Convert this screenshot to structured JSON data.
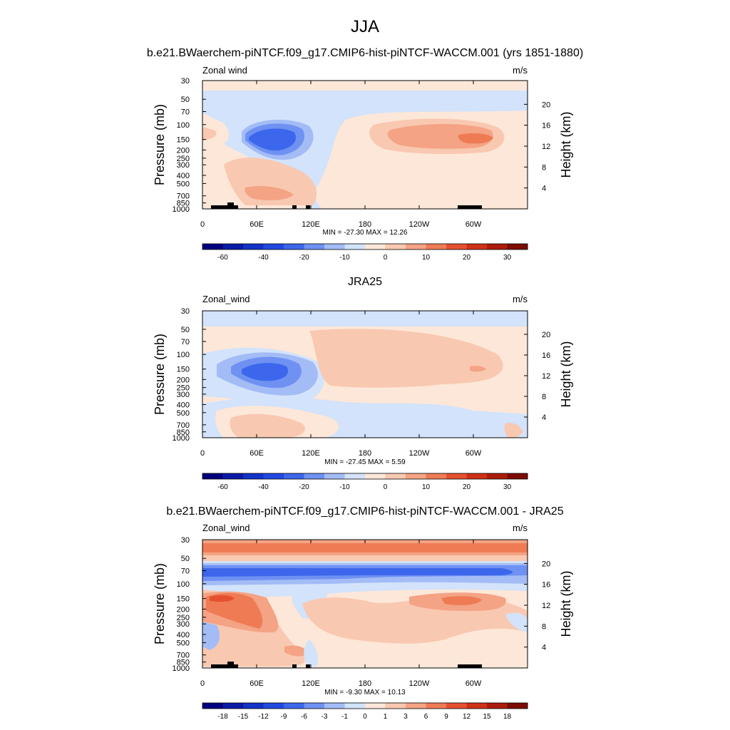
{
  "page_title": "JJA",
  "chart_data": [
    {
      "type": "heatmap",
      "title": "b.e21.BWaerchem-piNTCF.f09_g17.CMIP6-hist-piNTCF-WACCM.001 (yrs 1851-1880)",
      "left_label": "Zonal wind",
      "right_label": "m/s",
      "xlabel": "",
      "ylabel": "Pressure (mb)",
      "ylabel_right": "Height (km)",
      "xticks": [
        "0",
        "60E",
        "120E",
        "180",
        "120W",
        "60W"
      ],
      "xtick_values": [
        0,
        60,
        120,
        180,
        240,
        300
      ],
      "xlim": [
        0,
        360
      ],
      "yticks": [
        "30",
        "50",
        "70",
        "100",
        "150",
        "200",
        "250",
        "300",
        "400",
        "500",
        "700",
        "850",
        "1000"
      ],
      "ytick_values": [
        30,
        50,
        70,
        100,
        150,
        200,
        250,
        300,
        400,
        500,
        700,
        850,
        1000
      ],
      "ylim": [
        1000,
        30
      ],
      "yticks_right": [
        "20",
        "16",
        "12",
        "8",
        "4"
      ],
      "ytick_right_values": [
        20,
        16,
        12,
        8,
        4
      ],
      "stats": "MIN = -27.30  MAX =  12.26",
      "min": -27.3,
      "max": 12.26,
      "colorbar_labels": [
        "-60",
        "-40",
        "-20",
        "-10",
        "0",
        "10",
        "20",
        "30"
      ],
      "colorbar_levels": [
        -70,
        -60,
        -50,
        -40,
        -30,
        -20,
        -15,
        -10,
        -5,
        0,
        5,
        10,
        15,
        20,
        25,
        30,
        35
      ],
      "contour_regions": [
        {
          "level": "-5",
          "desc": "upper stratosphere band 30-110 mb"
        },
        {
          "level": "-15",
          "desc": "jet core near 60E-90E at 150 mb"
        },
        {
          "level": "-25",
          "desc": "jet center near 70E at 150 mb"
        },
        {
          "level": "5",
          "desc": "easterlies 170E-310E at 150 mb"
        },
        {
          "level": "10",
          "desc": "maximum near 290E at 150 mb"
        }
      ]
    },
    {
      "type": "heatmap",
      "title": "JRA25",
      "left_label": "Zonal_wind",
      "right_label": "m/s",
      "xlabel": "",
      "ylabel": "Pressure (mb)",
      "ylabel_right": "Height (km)",
      "xticks": [
        "0",
        "60E",
        "120E",
        "180",
        "120W",
        "60W"
      ],
      "xtick_values": [
        0,
        60,
        120,
        180,
        240,
        300
      ],
      "xlim": [
        0,
        360
      ],
      "yticks": [
        "30",
        "50",
        "70",
        "100",
        "150",
        "200",
        "250",
        "300",
        "400",
        "500",
        "700",
        "850",
        "1000"
      ],
      "ytick_values": [
        30,
        50,
        70,
        100,
        150,
        200,
        250,
        300,
        400,
        500,
        700,
        850,
        1000
      ],
      "ylim": [
        1000,
        30
      ],
      "yticks_right": [
        "20",
        "16",
        "12",
        "8",
        "4"
      ],
      "ytick_right_values": [
        20,
        16,
        12,
        8,
        4
      ],
      "stats": "MIN = -27.45  MAX =   5.59",
      "min": -27.45,
      "max": 5.59,
      "colorbar_labels": [
        "-60",
        "-40",
        "-20",
        "-10",
        "0",
        "10",
        "20",
        "30"
      ],
      "colorbar_levels": [
        -70,
        -60,
        -50,
        -40,
        -30,
        -20,
        -15,
        -10,
        -5,
        0,
        5,
        10,
        15,
        20,
        25,
        30,
        35
      ]
    },
    {
      "type": "heatmap",
      "title": "b.e21.BWaerchem-piNTCF.f09_g17.CMIP6-hist-piNTCF-WACCM.001 - JRA25",
      "left_label": "Zonal_wind",
      "right_label": "m/s",
      "xlabel": "",
      "ylabel": "Pressure (mb)",
      "ylabel_right": "Height (km)",
      "xticks": [
        "0",
        "60E",
        "120E",
        "180",
        "120W",
        "60W"
      ],
      "xtick_values": [
        0,
        60,
        120,
        180,
        240,
        300
      ],
      "xlim": [
        0,
        360
      ],
      "yticks": [
        "30",
        "50",
        "70",
        "100",
        "150",
        "200",
        "250",
        "300",
        "400",
        "500",
        "700",
        "850",
        "1000"
      ],
      "ytick_values": [
        30,
        50,
        70,
        100,
        150,
        200,
        250,
        300,
        400,
        500,
        700,
        850,
        1000
      ],
      "ylim": [
        1000,
        30
      ],
      "yticks_right": [
        "20",
        "16",
        "12",
        "8",
        "4"
      ],
      "ytick_right_values": [
        20,
        16,
        12,
        8,
        4
      ],
      "stats": "MIN =  -9.30  MAX =  10.13",
      "min": -9.3,
      "max": 10.13,
      "colorbar_labels": [
        "-18",
        "-15",
        "-12",
        "-9",
        "-6",
        "-3",
        "-1",
        "0",
        "1",
        "3",
        "6",
        "9",
        "12",
        "15",
        "18"
      ],
      "colorbar_levels": [
        -21,
        -18,
        -15,
        -12,
        -9,
        -6,
        -3,
        -1,
        0,
        1,
        3,
        6,
        9,
        12,
        15,
        18,
        21
      ]
    }
  ],
  "colorbar_colors": [
    "#00007f",
    "#0a1aa8",
    "#1232c8",
    "#2149e0",
    "#3c67ec",
    "#6e91f2",
    "#a3bcf6",
    "#d2e3fb",
    "#fde7d8",
    "#f9c8b0",
    "#f4a384",
    "#ef7b55",
    "#e5512f",
    "#cf3116",
    "#ad1c0b",
    "#7e0b02"
  ],
  "field_colors": {
    "neg_weak": "#d2e3fb",
    "neg_light": "#a3bcf6",
    "neg_mid": "#6e91f2",
    "neg_strong": "#3c67ec",
    "neg_core": "#2149e0",
    "pos_weak": "#fde7d8",
    "pos_light": "#f9c8b0",
    "pos_mid": "#f4a384",
    "pos_strong": "#ef7b55",
    "pos_core": "#e5512f",
    "topography": "#000000"
  }
}
